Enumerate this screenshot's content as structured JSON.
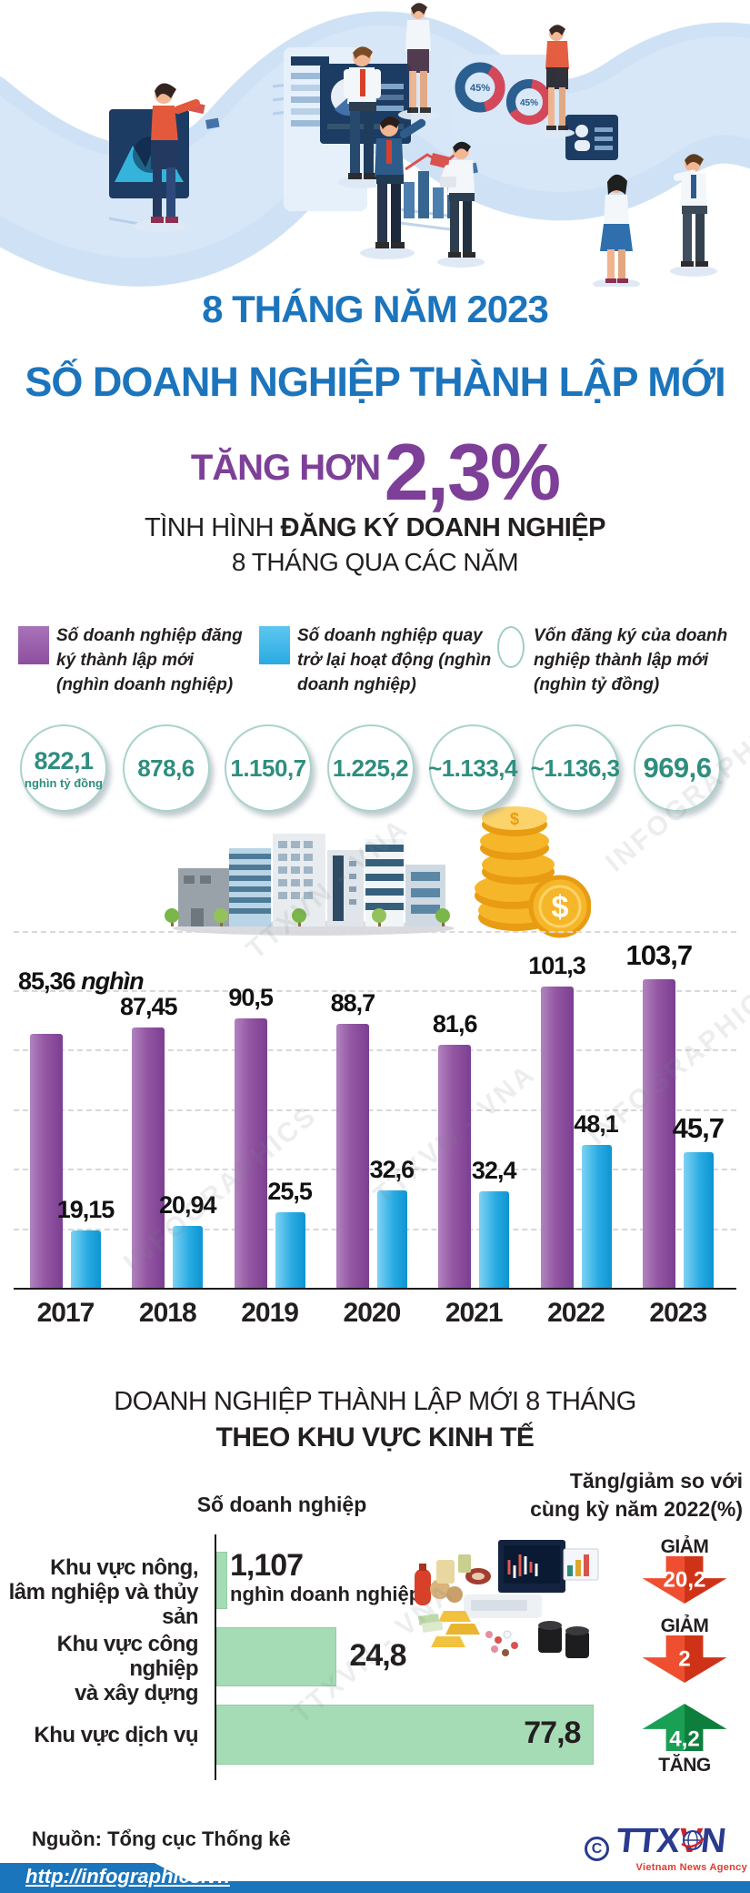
{
  "colors": {
    "title_blue": "#1c75bc",
    "title_purple": "#7d3f98",
    "bar_purple": "#9457a3",
    "bar_blue": "#29abe2",
    "capital_teal": "#2e8e7f",
    "region_bar_green": "#a6dcb5",
    "decrease_red": "#e8432a",
    "increase_green": "#17984a",
    "footer_blue": "#1b75bc"
  },
  "header": {
    "line1": "8 THÁNG NĂM 2023",
    "line2": "SỐ DOANH NGHIỆP THÀNH LẬP MỚI",
    "line3_prefix": "TĂNG HƠN",
    "line3_value": "2,3%"
  },
  "section1": {
    "title_prefix": "TÌNH HÌNH ",
    "title_bold": "ĐĂNG KÝ DOANH NGHIỆP",
    "subtitle": "8 THÁNG QUA CÁC NĂM"
  },
  "section2": {
    "line1": "DOANH NGHIỆP THÀNH LẬP MỚI  8 THÁNG",
    "line2": "THEO KHU VỰC KINH TẾ"
  },
  "hero": {
    "donut_label": "45%"
  },
  "watermarks": [
    "TTXVN - VNA",
    "INFOGRAPHICS"
  ],
  "chart_data": [
    {
      "type": "bar",
      "title": "TÌNH HÌNH ĐĂNG KÝ DOANH NGHIỆP 8 THÁNG QUA CÁC NĂM",
      "categories": [
        "2017",
        "2018",
        "2019",
        "2020",
        "2021",
        "2022",
        "2023"
      ],
      "series": [
        {
          "name": "Số doanh nghiệp đăng ký thành lập mới (nghìn doanh nghiệp)",
          "color": "#9457a3",
          "values": [
            85.36,
            87.45,
            90.5,
            88.7,
            81.6,
            101.3,
            103.7
          ],
          "labels": [
            "85,36",
            "87,45",
            "90,5",
            "88,7",
            "81,6",
            "101,3",
            "103,7"
          ]
        },
        {
          "name": "Số doanh nghiệp quay trở lại hoạt động (nghìn doanh nghiệp)",
          "color": "#29abe2",
          "values": [
            19.15,
            20.94,
            25.5,
            32.6,
            32.4,
            48.1,
            45.7
          ],
          "labels": [
            "19,15",
            "20,94",
            "25,5",
            "32,6",
            "32,4",
            "48,1",
            "45,7"
          ]
        }
      ],
      "first_bar_unit": "nghìn doanh nghiệp",
      "capital_series": {
        "name": "Vốn đăng ký của doanh nghiệp thành lập mới (nghìn tỷ đồng)",
        "color": "#2e8e7f",
        "labels": [
          "822,1",
          "878,6",
          "1.150,7",
          "1.225,2",
          "~1.133,4",
          "~1.136,3",
          "969,6"
        ],
        "unit_first": "nghìn tỷ đồng"
      },
      "ylim": [
        0,
        120
      ],
      "grid": "horizontal-dashed-every-20",
      "legend_position": "top"
    },
    {
      "type": "bar",
      "orientation": "horizontal",
      "title": "DOANH NGHIỆP THÀNH LẬP MỚI 8 THÁNG THEO KHU VỰC KINH TẾ",
      "value_header": "Số doanh nghiệp",
      "change_header": "Tăng/giảm so với cùng kỳ năm 2022(%)",
      "categories": [
        "Khu vực nông,\nlâm nghiệp và thủy sản",
        "Khu vực công nghiệp\nvà xây dựng",
        "Khu vực dịch vụ"
      ],
      "values": [
        1.107,
        24.8,
        77.8
      ],
      "labels": [
        "1,107",
        "24,8",
        "77,8"
      ],
      "first_value_unit": "nghìn doanh nghiệp",
      "changes": [
        {
          "dir": "down",
          "word": "GIẢM",
          "value": "20,2"
        },
        {
          "dir": "down",
          "word": "GIẢM",
          "value": "2"
        },
        {
          "dir": "up",
          "word": "TĂNG",
          "value": "4,2"
        }
      ],
      "bar_color": "#a6dcb5"
    }
  ],
  "footer": {
    "source": "Nguồn: Tổng cục Thống kê",
    "url": "http://infographics.vn",
    "copyright": "C",
    "agency": {
      "part1": "TTX",
      "part2": "V",
      "part3": "N"
    },
    "agency_sub": "Vietnam News Agency"
  }
}
